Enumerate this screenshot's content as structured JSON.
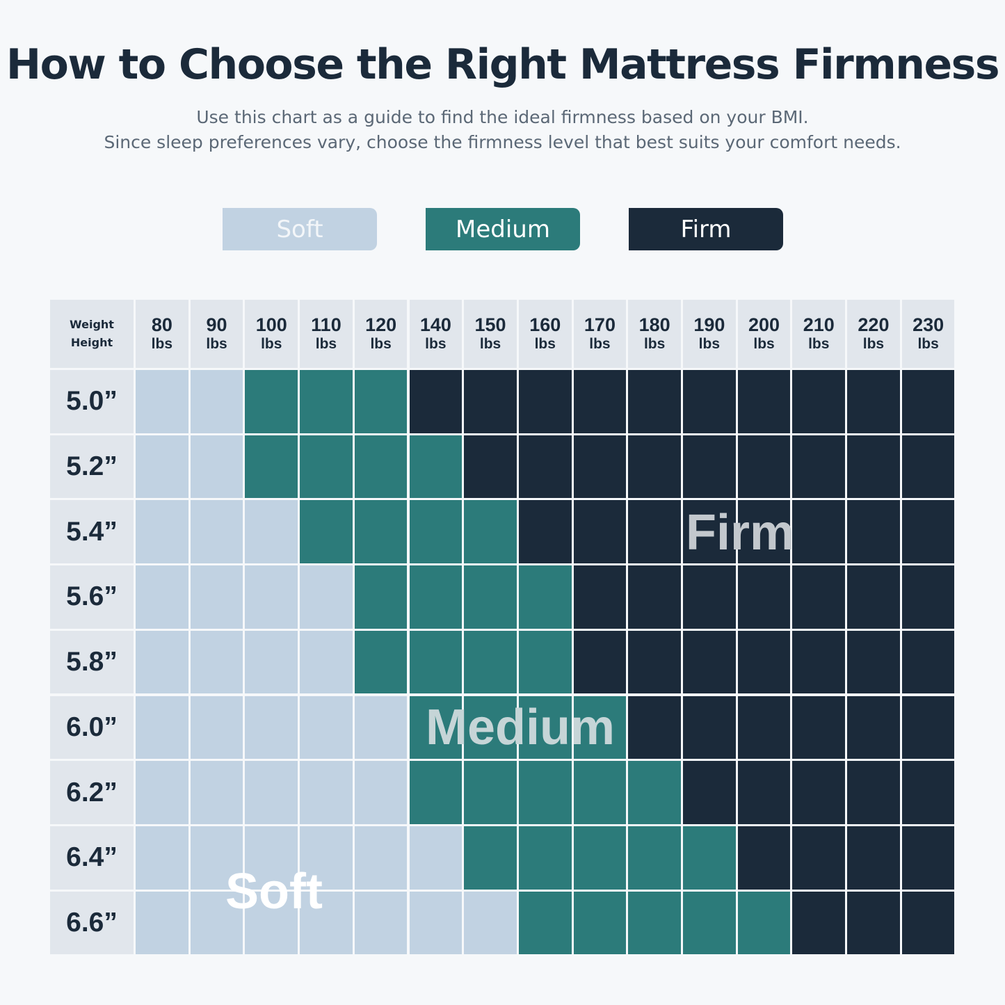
{
  "header": {
    "title": "How to Choose the Right Mattress Firmness",
    "subtitle_line1": "Use this chart as a guide to find the ideal firmness based on your BMI.",
    "subtitle_line2": "Since sleep preferences vary, choose the firmness level that best suits your comfort needs."
  },
  "legend": {
    "soft": "Soft",
    "medium": "Medium",
    "firm": "Firm"
  },
  "colors": {
    "soft": "#c1d2e2",
    "medium": "#2c7b7a",
    "firm": "#1b2a3a",
    "header": "#e1e6ec",
    "background": "#f6f8fa"
  },
  "chart_data": {
    "type": "heatmap",
    "corner_label_top": "Weight",
    "corner_label_bottom": "Height",
    "x_unit": "lbs",
    "x": [
      "80",
      "90",
      "100",
      "110",
      "120",
      "140",
      "150",
      "160",
      "170",
      "180",
      "190",
      "200",
      "210",
      "220",
      "230"
    ],
    "y": [
      "5.0”",
      "5.2”",
      "5.4”",
      "5.6”",
      "5.8”",
      "6.0”",
      "6.2”",
      "6.4”",
      "6.6”"
    ],
    "levels": [
      "Soft",
      "Medium",
      "Firm"
    ],
    "values": [
      [
        "Soft",
        "Soft",
        "Medium",
        "Medium",
        "Medium",
        "Firm",
        "Firm",
        "Firm",
        "Firm",
        "Firm",
        "Firm",
        "Firm",
        "Firm",
        "Firm",
        "Firm"
      ],
      [
        "Soft",
        "Soft",
        "Medium",
        "Medium",
        "Medium",
        "Medium",
        "Firm",
        "Firm",
        "Firm",
        "Firm",
        "Firm",
        "Firm",
        "Firm",
        "Firm",
        "Firm"
      ],
      [
        "Soft",
        "Soft",
        "Soft",
        "Medium",
        "Medium",
        "Medium",
        "Medium",
        "Firm",
        "Firm",
        "Firm",
        "Firm",
        "Firm",
        "Firm",
        "Firm",
        "Firm"
      ],
      [
        "Soft",
        "Soft",
        "Soft",
        "Soft",
        "Medium",
        "Medium",
        "Medium",
        "Medium",
        "Firm",
        "Firm",
        "Firm",
        "Firm",
        "Firm",
        "Firm",
        "Firm"
      ],
      [
        "Soft",
        "Soft",
        "Soft",
        "Soft",
        "Medium",
        "Medium",
        "Medium",
        "Medium",
        "Firm",
        "Firm",
        "Firm",
        "Firm",
        "Firm",
        "Firm",
        "Firm"
      ],
      [
        "Soft",
        "Soft",
        "Soft",
        "Soft",
        "Soft",
        "Medium",
        "Medium",
        "Medium",
        "Medium",
        "Firm",
        "Firm",
        "Firm",
        "Firm",
        "Firm",
        "Firm"
      ],
      [
        "Soft",
        "Soft",
        "Soft",
        "Soft",
        "Soft",
        "Medium",
        "Medium",
        "Medium",
        "Medium",
        "Medium",
        "Firm",
        "Firm",
        "Firm",
        "Firm",
        "Firm"
      ],
      [
        "Soft",
        "Soft",
        "Soft",
        "Soft",
        "Soft",
        "Soft",
        "Medium",
        "Medium",
        "Medium",
        "Medium",
        "Medium",
        "Firm",
        "Firm",
        "Firm",
        "Firm"
      ],
      [
        "Soft",
        "Soft",
        "Soft",
        "Soft",
        "Soft",
        "Soft",
        "Soft",
        "Medium",
        "Medium",
        "Medium",
        "Medium",
        "Medium",
        "Firm",
        "Firm",
        "Firm"
      ]
    ],
    "zone_labels": {
      "firm": "Firm",
      "medium": "Medium",
      "soft": "Soft"
    }
  }
}
